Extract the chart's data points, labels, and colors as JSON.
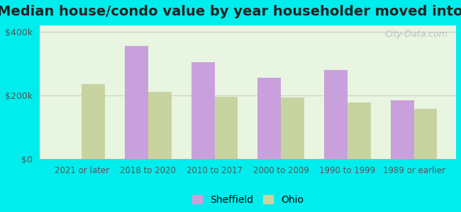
{
  "title": "Median house/condo value by year householder moved into unit",
  "categories": [
    "2021 or later",
    "2018 to 2020",
    "2010 to 2017",
    "2000 to 2009",
    "1990 to 1999",
    "1989 or earlier"
  ],
  "sheffield_values": [
    0,
    355000,
    305000,
    255000,
    280000,
    185000
  ],
  "ohio_values": [
    235000,
    210000,
    195000,
    193000,
    178000,
    158000
  ],
  "sheffield_color": "#c9a0dc",
  "ohio_color": "#c8d4a0",
  "background_color": "#00eded",
  "plot_bg_color_top": "#e8f5e0",
  "plot_bg_color_bottom": "#f5fff0",
  "ylim": [
    0,
    420000
  ],
  "yticks": [
    0,
    200000,
    400000
  ],
  "ytick_labels": [
    "$0",
    "$200k",
    "$400k"
  ],
  "title_fontsize": 14,
  "watermark": "City-Data.com"
}
